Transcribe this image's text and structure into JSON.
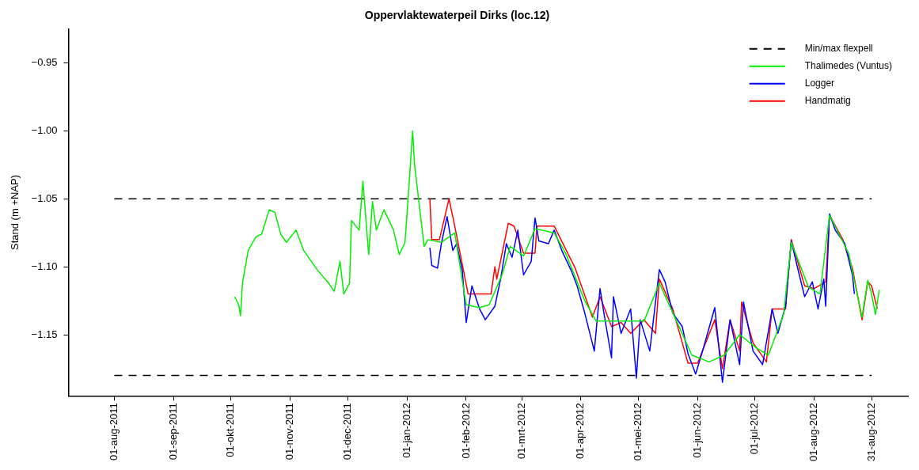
{
  "chart_data": {
    "type": "line",
    "title": "Oppervlaktewaterpeil Dirks (loc.12)",
    "ylabel": "Stand (m +NAP)",
    "xlim": [
      "2011-07-08",
      "2012-09-19"
    ],
    "ylim": [
      -1.195,
      -0.925
    ],
    "xticks": [
      {
        "value": "2011-08-01",
        "label": "01-aug-2011"
      },
      {
        "value": "2011-09-01",
        "label": "01-sep-2011"
      },
      {
        "value": "2011-10-01",
        "label": "01-okt-2011"
      },
      {
        "value": "2011-11-01",
        "label": "01-nov-2011"
      },
      {
        "value": "2011-12-01",
        "label": "01-dec-2011"
      },
      {
        "value": "2012-01-01",
        "label": "01-jan-2012"
      },
      {
        "value": "2012-02-01",
        "label": "01-feb-2012"
      },
      {
        "value": "2012-03-01",
        "label": "01-mrt-2012"
      },
      {
        "value": "2012-04-01",
        "label": "01-apr-2012"
      },
      {
        "value": "2012-05-01",
        "label": "01-mei-2012"
      },
      {
        "value": "2012-06-01",
        "label": "01-jun-2012"
      },
      {
        "value": "2012-07-01",
        "label": "01-jul-2012"
      },
      {
        "value": "2012-08-01",
        "label": "01-aug-2012"
      },
      {
        "value": "2012-08-31",
        "label": "31-aug-2012"
      }
    ],
    "yticks": [
      {
        "value": -0.95,
        "label": "−0.95"
      },
      {
        "value": -1.0,
        "label": "−1.00"
      },
      {
        "value": -1.05,
        "label": "−1.05"
      },
      {
        "value": -1.1,
        "label": "−1.10"
      },
      {
        "value": -1.15,
        "label": "−1.15"
      }
    ],
    "grid": false,
    "legend": "top right",
    "marker": "none",
    "ref_lines": [
      {
        "axis": "y",
        "value": -1.05,
        "label": "Min/max flexpell",
        "color": "#000000",
        "line_style": "dashed"
      },
      {
        "axis": "y",
        "value": -1.18,
        "color": "#000000",
        "line_style": "dashed"
      }
    ],
    "series": [
      {
        "name": "Thalimedes (Vuntus)",
        "color": "#00ee00",
        "line_style": "solid",
        "x": [
          "2011-10-03",
          "2011-10-05",
          "2011-10-06",
          "2011-10-07",
          "2011-10-10",
          "2011-10-14",
          "2011-10-17",
          "2011-10-21",
          "2011-10-24",
          "2011-10-27",
          "2011-10-30",
          "2011-11-04",
          "2011-11-08",
          "2011-11-15",
          "2011-11-21",
          "2011-11-24",
          "2011-11-27",
          "2011-11-29",
          "2011-12-02",
          "2011-12-03",
          "2011-12-07",
          "2011-12-09",
          "2011-12-12",
          "2011-12-14",
          "2011-12-16",
          "2011-12-20",
          "2011-12-25",
          "2011-12-28",
          "2011-12-31",
          "2012-01-02",
          "2012-01-04",
          "2012-01-05",
          "2012-01-07",
          "2012-01-10",
          "2012-01-12",
          "2012-01-19",
          "2012-01-26",
          "2012-02-01",
          "2012-02-08",
          "2012-02-13",
          "2012-02-20",
          "2012-02-24",
          "2012-03-02",
          "2012-03-08",
          "2012-03-18",
          "2012-03-24",
          "2012-04-03",
          "2012-04-09",
          "2012-04-17",
          "2012-04-26",
          "2012-05-04",
          "2012-05-12",
          "2012-05-21",
          "2012-05-29",
          "2012-06-07",
          "2012-06-15",
          "2012-06-23",
          "2012-07-02",
          "2012-07-08",
          "2012-07-16",
          "2012-07-20",
          "2012-07-29",
          "2012-08-04",
          "2012-08-09",
          "2012-08-19",
          "2012-08-26",
          "2012-08-29",
          "2012-08-31",
          "2012-09-02",
          "2012-09-04"
        ],
        "values": [
          -1.122,
          -1.128,
          -1.136,
          -1.112,
          -1.088,
          -1.078,
          -1.076,
          -1.058,
          -1.06,
          -1.076,
          -1.082,
          -1.073,
          -1.088,
          -1.102,
          -1.112,
          -1.118,
          -1.096,
          -1.12,
          -1.112,
          -1.066,
          -1.073,
          -1.037,
          -1.091,
          -1.052,
          -1.073,
          -1.058,
          -1.073,
          -1.091,
          -1.082,
          -1.042,
          -1.0,
          -1.025,
          -1.049,
          -1.085,
          -1.08,
          -1.082,
          -1.075,
          -1.128,
          -1.13,
          -1.128,
          -1.105,
          -1.085,
          -1.092,
          -1.072,
          -1.075,
          -1.09,
          -1.125,
          -1.14,
          -1.14,
          -1.14,
          -1.14,
          -1.112,
          -1.14,
          -1.165,
          -1.17,
          -1.165,
          -1.15,
          -1.16,
          -1.165,
          -1.135,
          -1.082,
          -1.115,
          -1.12,
          -1.062,
          -1.09,
          -1.137,
          -1.11,
          -1.12,
          -1.135,
          -1.117
        ]
      },
      {
        "name": "Logger",
        "color": "#0000ff",
        "line_style": "solid",
        "x": [
          "2012-01-13",
          "2012-01-14",
          "2012-01-17",
          "2012-01-19",
          "2012-01-22",
          "2012-01-25",
          "2012-01-27",
          "2012-01-30",
          "2012-02-01",
          "2012-02-04",
          "2012-02-08",
          "2012-02-11",
          "2012-02-16",
          "2012-02-19",
          "2012-02-22",
          "2012-02-25",
          "2012-02-28",
          "2012-03-02",
          "2012-03-06",
          "2012-03-08",
          "2012-03-10",
          "2012-03-15",
          "2012-03-18",
          "2012-03-22",
          "2012-03-27",
          "2012-03-30",
          "2012-04-03",
          "2012-04-08",
          "2012-04-11",
          "2012-04-13",
          "2012-04-17",
          "2012-04-18",
          "2012-04-22",
          "2012-04-27",
          "2012-04-30",
          "2012-05-02",
          "2012-05-07",
          "2012-05-12",
          "2012-05-15",
          "2012-05-19",
          "2012-05-24",
          "2012-05-27",
          "2012-05-31",
          "2012-06-04",
          "2012-06-10",
          "2012-06-14",
          "2012-06-18",
          "2012-06-23",
          "2012-06-25",
          "2012-06-30",
          "2012-07-05",
          "2012-07-10",
          "2012-07-13",
          "2012-07-17",
          "2012-07-20",
          "2012-07-23",
          "2012-07-27",
          "2012-07-31",
          "2012-08-03",
          "2012-08-06",
          "2012-08-07",
          "2012-08-09",
          "2012-08-12",
          "2012-08-17",
          "2012-08-21",
          "2012-08-22"
        ],
        "values": [
          -1.086,
          -1.099,
          -1.101,
          -1.083,
          -1.063,
          -1.088,
          -1.083,
          -1.103,
          -1.141,
          -1.114,
          -1.131,
          -1.139,
          -1.129,
          -1.109,
          -1.083,
          -1.093,
          -1.073,
          -1.106,
          -1.096,
          -1.064,
          -1.081,
          -1.083,
          -1.073,
          -1.088,
          -1.103,
          -1.114,
          -1.134,
          -1.162,
          -1.116,
          -1.134,
          -1.167,
          -1.122,
          -1.149,
          -1.131,
          -1.182,
          -1.139,
          -1.162,
          -1.102,
          -1.111,
          -1.134,
          -1.144,
          -1.164,
          -1.179,
          -1.16,
          -1.13,
          -1.185,
          -1.139,
          -1.172,
          -1.126,
          -1.162,
          -1.172,
          -1.131,
          -1.149,
          -1.129,
          -1.081,
          -1.099,
          -1.122,
          -1.111,
          -1.131,
          -1.109,
          -1.129,
          -1.061,
          -1.073,
          -1.083,
          -1.106,
          -1.12
        ]
      },
      {
        "name": "Handmatig",
        "color": "#ff0000",
        "line_style": "solid",
        "x": [
          "2012-01-13",
          "2012-01-14",
          "2012-01-18",
          "2012-01-23",
          "2012-01-26",
          "2012-02-02",
          "2012-02-14",
          "2012-02-16",
          "2012-02-17",
          "2012-02-23",
          "2012-02-26",
          "2012-03-02",
          "2012-03-08",
          "2012-03-09",
          "2012-03-18",
          "2012-03-29",
          "2012-04-07",
          "2012-04-11",
          "2012-04-17",
          "2012-04-22",
          "2012-04-27",
          "2012-05-04",
          "2012-05-10",
          "2012-05-12",
          "2012-05-19",
          "2012-05-27",
          "2012-06-01",
          "2012-06-10",
          "2012-06-14",
          "2012-06-18",
          "2012-06-23",
          "2012-06-24",
          "2012-06-30",
          "2012-07-07",
          "2012-07-10",
          "2012-07-17",
          "2012-07-20",
          "2012-07-27",
          "2012-08-01",
          "2012-08-07",
          "2012-08-09",
          "2012-08-16",
          "2012-08-21",
          "2012-08-26",
          "2012-08-29",
          "2012-08-31",
          "2012-09-03"
        ],
        "values": [
          -1.05,
          -1.08,
          -1.08,
          -1.05,
          -1.07,
          -1.12,
          -1.12,
          -1.1,
          -1.109,
          -1.068,
          -1.07,
          -1.09,
          -1.09,
          -1.07,
          -1.07,
          -1.101,
          -1.137,
          -1.122,
          -1.144,
          -1.141,
          -1.149,
          -1.139,
          -1.149,
          -1.109,
          -1.131,
          -1.171,
          -1.171,
          -1.139,
          -1.175,
          -1.139,
          -1.162,
          -1.126,
          -1.156,
          -1.17,
          -1.131,
          -1.131,
          -1.08,
          -1.114,
          -1.116,
          -1.111,
          -1.062,
          -1.08,
          -1.101,
          -1.139,
          -1.111,
          -1.114,
          -1.131
        ]
      }
    ]
  }
}
